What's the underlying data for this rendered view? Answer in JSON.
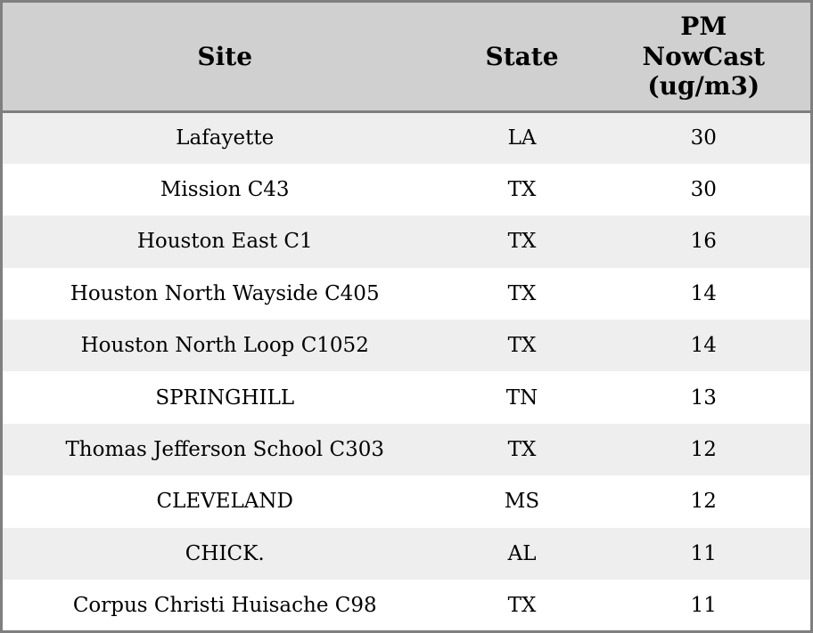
{
  "chart_data": {
    "type": "table",
    "title": "",
    "columns": [
      "Site",
      "State",
      "PM\nNowCast\n(ug/m3)"
    ],
    "rows": [
      [
        "Lafayette",
        "LA",
        "30"
      ],
      [
        "Mission C43",
        "TX",
        "30"
      ],
      [
        "Houston East C1",
        "TX",
        "16"
      ],
      [
        "Houston North Wayside C405",
        "TX",
        "14"
      ],
      [
        "Houston North Loop C1052",
        "TX",
        "14"
      ],
      [
        "SPRINGHILL",
        "TN",
        "13"
      ],
      [
        "Thomas Jefferson School C303",
        "TX",
        "12"
      ],
      [
        "CLEVELAND",
        "MS",
        "12"
      ],
      [
        "CHICK.",
        "AL",
        "11"
      ],
      [
        "Corpus Christi Huisache C98",
        "TX",
        "11"
      ]
    ],
    "layout": {
      "grid": false,
      "row_striping": true,
      "header_lines": [
        "PM",
        "NowCast",
        "(ug/m3)"
      ]
    }
  },
  "colors": {
    "header_bg": "#d0d0d0",
    "row_odd_bg": "#eeeeee",
    "row_even_bg": "#ffffff",
    "border": "#7f7f7f",
    "text": "#000000"
  }
}
